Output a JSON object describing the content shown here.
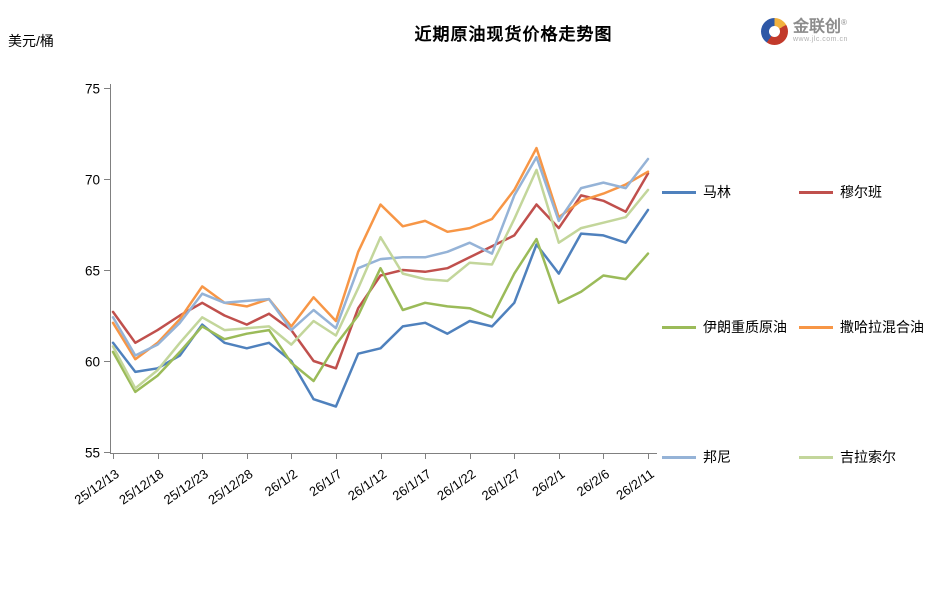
{
  "page": {
    "title": "近期原油现货价格走势图",
    "unit_label": "美元/桶"
  },
  "logo": {
    "name": "金联创",
    "registered_mark": "®",
    "subtext": "www.jlc.com.cn"
  },
  "chart_data": {
    "type": "line",
    "title": "近期原油现货价格走势图",
    "ylabel": "美元/桶",
    "xlabel": "",
    "grid": false,
    "legend_position": "right side, two columns, three rows",
    "ylim": [
      55,
      75
    ],
    "yticks": [
      55,
      60,
      65,
      70,
      75
    ],
    "x_tick_labels": [
      "25/12/13",
      "25/12/18",
      "25/12/23",
      "25/12/28",
      "26/1/2",
      "26/1/7",
      "26/1/12",
      "26/1/17",
      "26/1/22",
      "26/1/27",
      "26/2/1",
      "26/2/6",
      "26/2/11"
    ],
    "x_tick_offsets": [
      0,
      5,
      10,
      15,
      20,
      25,
      30,
      35,
      40,
      45,
      50,
      55,
      60
    ],
    "x": [
      0,
      2.5,
      5,
      7.5,
      10,
      12.5,
      15,
      17.5,
      20,
      22.5,
      25,
      27.5,
      30,
      32.5,
      35,
      37.5,
      40,
      42.5,
      45,
      47.5,
      50,
      52.5,
      55,
      57.5,
      60
    ],
    "x_range": [
      0,
      60
    ],
    "series": [
      {
        "name": "马林",
        "color": "#4F81BD",
        "values": [
          61.0,
          59.4,
          59.6,
          60.3,
          62.0,
          61.0,
          60.7,
          61.0,
          60.0,
          57.9,
          57.5,
          60.4,
          60.7,
          61.9,
          62.1,
          61.5,
          62.2,
          61.9,
          63.2,
          66.4,
          64.8,
          67.0,
          66.9,
          66.5,
          68.3
        ]
      },
      {
        "name": "穆尔班",
        "color": "#C0504D",
        "values": [
          62.7,
          61.0,
          61.7,
          62.5,
          63.2,
          62.5,
          62.0,
          62.6,
          61.7,
          60.0,
          59.6,
          62.9,
          64.7,
          65.0,
          64.9,
          65.1,
          65.7,
          66.3,
          66.9,
          68.6,
          67.3,
          69.1,
          68.8,
          68.2,
          70.3
        ]
      },
      {
        "name": "伊朗重质原油",
        "color": "#9BBB59",
        "values": [
          60.5,
          58.3,
          59.2,
          60.5,
          61.9,
          61.2,
          61.5,
          61.7,
          59.9,
          58.9,
          60.9,
          62.5,
          65.1,
          62.8,
          63.2,
          63.0,
          62.9,
          62.4,
          64.8,
          66.7,
          63.2,
          63.8,
          64.7,
          64.5,
          65.9
        ]
      },
      {
        "name": "撒哈拉混合油",
        "color": "#F79646",
        "values": [
          62.1,
          60.1,
          61.0,
          62.3,
          64.1,
          63.2,
          63.0,
          63.4,
          61.9,
          63.5,
          62.2,
          66.0,
          68.6,
          67.4,
          67.7,
          67.1,
          67.3,
          67.8,
          69.4,
          71.7,
          67.9,
          68.8,
          69.2,
          69.7,
          70.4
        ]
      },
      {
        "name": "邦尼",
        "color": "#95B3D7",
        "values": [
          62.4,
          60.3,
          60.9,
          62.1,
          63.7,
          63.2,
          63.3,
          63.4,
          61.7,
          62.8,
          61.8,
          65.1,
          65.6,
          65.7,
          65.7,
          66.0,
          66.5,
          65.9,
          69.1,
          71.2,
          67.7,
          69.5,
          69.8,
          69.5,
          71.1
        ]
      },
      {
        "name": "吉拉索尔",
        "color": "#C3D69B",
        "values": [
          60.8,
          58.5,
          59.5,
          61.0,
          62.4,
          61.7,
          61.8,
          61.9,
          60.9,
          62.2,
          61.4,
          64.0,
          66.8,
          64.8,
          64.5,
          64.4,
          65.4,
          65.3,
          67.8,
          70.5,
          66.5,
          67.3,
          67.6,
          67.9,
          69.4
        ]
      }
    ]
  }
}
